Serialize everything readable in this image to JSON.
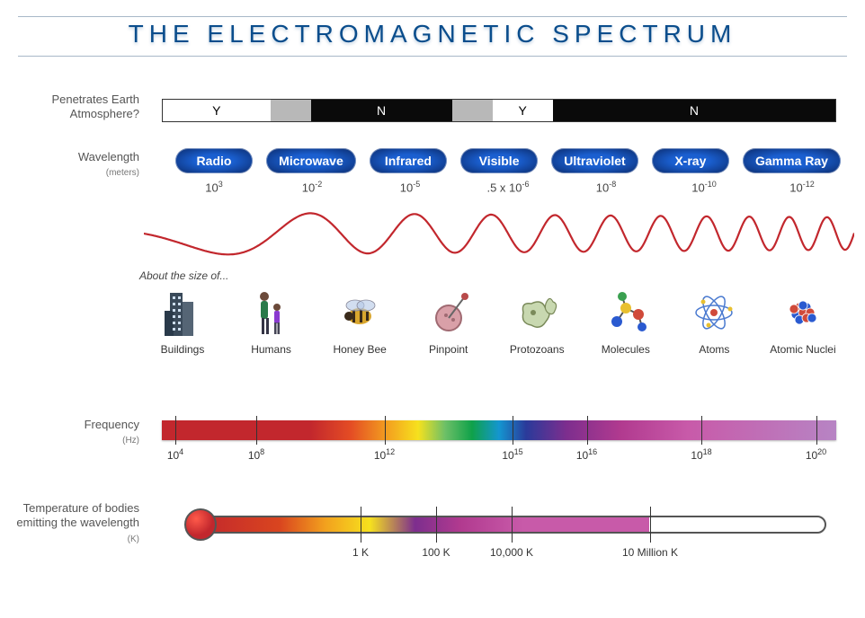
{
  "title": "THE ELECTROMAGNETIC SPECTRUM",
  "title_color": "#0a4d8c",
  "labels": {
    "penetrates": "Penetrates Earth Atmosphere?",
    "wavelength": "Wavelength",
    "wavelength_unit": "(meters)",
    "about_size": "About the size of...",
    "frequency": "Frequency",
    "frequency_unit": "(Hz)",
    "temperature": "Temperature of bodies emitting the wavelength",
    "temperature_unit": "(K)"
  },
  "penetration": {
    "segments": [
      {
        "label": "Y",
        "width_pct": 16,
        "bg": "#ffffff",
        "fg": "#000"
      },
      {
        "label": "",
        "width_pct": 6,
        "bg": "#b8b8b8",
        "fg": "#000"
      },
      {
        "label": "N",
        "width_pct": 21,
        "bg": "#0a0a0a",
        "fg": "#fff"
      },
      {
        "label": "",
        "width_pct": 6,
        "bg": "#b8b8b8",
        "fg": "#000"
      },
      {
        "label": "Y",
        "width_pct": 9,
        "bg": "#ffffff",
        "fg": "#000"
      },
      {
        "label": "N",
        "width_pct": 42,
        "bg": "#0a0a0a",
        "fg": "#fff"
      }
    ]
  },
  "bands": [
    {
      "name": "Radio",
      "wavelength_html": "10<sup>3</sup>"
    },
    {
      "name": "Microwave",
      "wavelength_html": "10<sup>-2</sup>"
    },
    {
      "name": "Infrared",
      "wavelength_html": "10<sup>-5</sup>"
    },
    {
      "name": "Visible",
      "wavelength_html": ".5 x 10<sup>-6</sup>"
    },
    {
      "name": "Ultraviolet",
      "wavelength_html": "10<sup>-8</sup>"
    },
    {
      "name": "X-ray",
      "wavelength_html": "10<sup>-10</sup>"
    },
    {
      "name": "Gamma Ray",
      "wavelength_html": "10<sup>-12</sup>"
    }
  ],
  "pill_style": {
    "bg_inner": "#1a5fd0",
    "bg_outer": "#0b2a6a",
    "text": "#ffffff"
  },
  "wave": {
    "color": "#c2272d",
    "stroke_width": 2.2
  },
  "size_icons": [
    {
      "label": "Buildings",
      "kind": "building"
    },
    {
      "label": "Humans",
      "kind": "humans"
    },
    {
      "label": "Honey Bee",
      "kind": "bee"
    },
    {
      "label": "Pinpoint",
      "kind": "pin"
    },
    {
      "label": "Protozoans",
      "kind": "protozoa"
    },
    {
      "label": "Molecules",
      "kind": "molecule"
    },
    {
      "label": "Atoms",
      "kind": "atom"
    },
    {
      "label": "Atomic Nuclei",
      "kind": "nucleus"
    }
  ],
  "frequency": {
    "ticks": [
      {
        "pos_pct": 2,
        "label_html": "10<sup>4</sup>"
      },
      {
        "pos_pct": 14,
        "label_html": "10<sup>8</sup>"
      },
      {
        "pos_pct": 33,
        "label_html": "10<sup>12</sup>"
      },
      {
        "pos_pct": 52,
        "label_html": "10<sup>15</sup>"
      },
      {
        "pos_pct": 63,
        "label_html": "10<sup>16</sup>"
      },
      {
        "pos_pct": 80,
        "label_html": "10<sup>18</sup>"
      },
      {
        "pos_pct": 97,
        "label_html": "10<sup>20</sup>"
      }
    ],
    "gradient_stops": [
      [
        "#c2272d",
        0
      ],
      [
        "#c2272d",
        22
      ],
      [
        "#e44c24",
        28
      ],
      [
        "#f4a81f",
        34
      ],
      [
        "#f6e11e",
        38
      ],
      [
        "#6dc067",
        42
      ],
      [
        "#0fa14a",
        46
      ],
      [
        "#1496d0",
        50
      ],
      [
        "#2a3a9a",
        54
      ],
      [
        "#7d2e8e",
        60
      ],
      [
        "#b13a8f",
        68
      ],
      [
        "#c85aa9",
        78
      ],
      [
        "#b784c4",
        100
      ]
    ]
  },
  "temperature": {
    "fill_pct": 72,
    "ticks": [
      {
        "pos_pct": 26,
        "label": "1 K"
      },
      {
        "pos_pct": 38,
        "label": "100 K"
      },
      {
        "pos_pct": 50,
        "label": "10,000 K"
      },
      {
        "pos_pct": 72,
        "label": "10 Million K"
      }
    ],
    "bulb_color": "#c2272d",
    "border_color": "#555"
  }
}
